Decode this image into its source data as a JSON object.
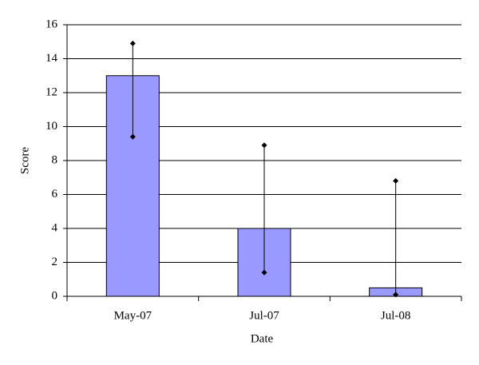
{
  "chart_data": {
    "type": "bar",
    "x_label": "Date",
    "y_label": "Score",
    "categories": [
      "May-07",
      "Jul-07",
      "Jul-08"
    ],
    "values": [
      13,
      4,
      0.5
    ],
    "error_minus": [
      3.6,
      2.6,
      0.4
    ],
    "error_plus": [
      1.9,
      4.9,
      6.3
    ],
    "color": "#9999ff",
    "ylim": [
      0,
      16
    ],
    "yticks": [
      0,
      2,
      4,
      6,
      8,
      10,
      12,
      14,
      16
    ],
    "grid": true
  }
}
